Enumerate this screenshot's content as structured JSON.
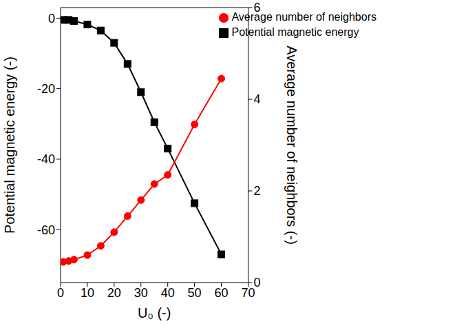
{
  "chart_data": {
    "type": "line",
    "x_label": "U₀ (-)",
    "y_label": "Potential magnetic energy (-)",
    "y2_label": "Average number of neighbors (-)",
    "x": [
      1,
      3,
      5,
      10,
      15,
      20,
      25,
      30,
      35,
      40,
      50,
      60
    ],
    "series": [
      {
        "name": "Potential magnetic energy",
        "color": "#000000",
        "marker": "square",
        "axis": "y",
        "values": [
          -0.5,
          -0.5,
          -0.8,
          -1.8,
          -3.5,
          -7,
          -13,
          -21,
          -29.5,
          -37,
          -52.5,
          -67
        ]
      },
      {
        "name": "Average number of neighbors",
        "color": "#ff0000",
        "marker": "circle",
        "axis": "y2",
        "values": [
          0.45,
          0.47,
          0.5,
          0.6,
          0.8,
          1.1,
          1.45,
          1.8,
          2.15,
          2.35,
          3.45,
          4.45
        ]
      }
    ],
    "xlim": [
      0,
      70
    ],
    "xticks": [
      0,
      10,
      20,
      30,
      40,
      50,
      60,
      70
    ],
    "ylim": [
      -75,
      3
    ],
    "yticks": [
      -60,
      -40,
      -20,
      0
    ],
    "y2lim": [
      0,
      6
    ],
    "y2ticks": [
      0,
      2,
      4,
      6
    ],
    "legend": "upper right",
    "grid": false
  }
}
